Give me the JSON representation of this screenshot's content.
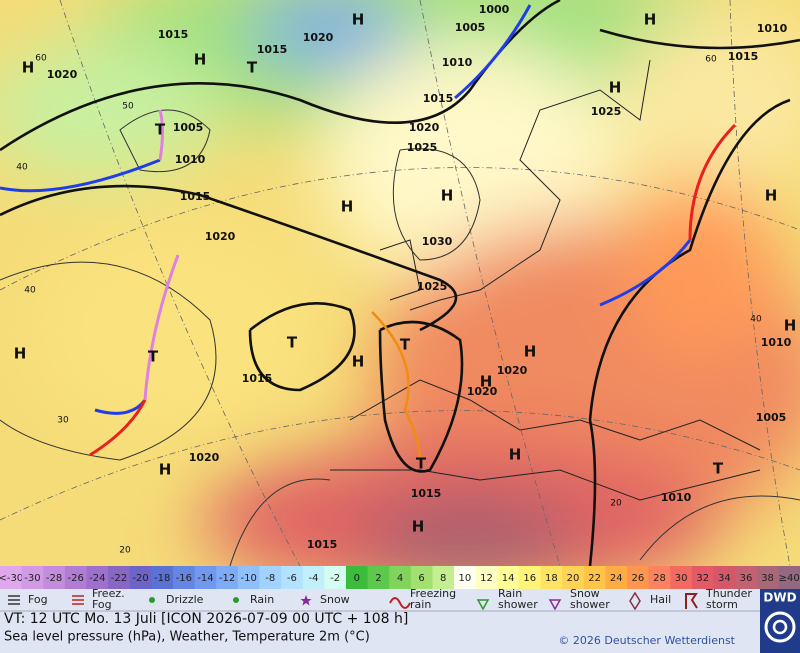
{
  "map": {
    "labels": [
      "H",
      "1020",
      "1015",
      "1015",
      "1020",
      "H",
      "H",
      "T",
      "1000",
      "1005",
      "H",
      "1010",
      "1015",
      "1010",
      "1015",
      "H",
      "1025",
      "T",
      "1005",
      "1010",
      "1020",
      "1025",
      "1015",
      "H",
      "H",
      "1020",
      "1030",
      "1025",
      "T",
      "1015",
      "H",
      "H",
      "T",
      "H",
      "1020",
      "H",
      "1020",
      "T",
      "T",
      "1015",
      "H",
      "1015",
      "H",
      "1020",
      "H",
      "T",
      "1010",
      "1005",
      "1010",
      "H",
      "H",
      "40",
      "40",
      "30",
      "20",
      "20",
      "60",
      "50",
      "60",
      "40"
    ]
  },
  "scale": {
    "labels": [
      "<-30",
      -30,
      -28,
      -26,
      -24,
      -22,
      -20,
      -18,
      -16,
      -14,
      -12,
      -10,
      -8,
      -6,
      -4,
      -2,
      0,
      2,
      4,
      6,
      8,
      10,
      12,
      14,
      16,
      18,
      20,
      22,
      24,
      26,
      28,
      30,
      32,
      34,
      36,
      38,
      "≥40"
    ],
    "colors": [
      "#e0a8ec",
      "#d29ae4",
      "#c48cdc",
      "#b07cd4",
      "#9c70cc",
      "#8866c4",
      "#6c64c8",
      "#5a72d4",
      "#6486e2",
      "#7098ee",
      "#7eaaf6",
      "#90c0fc",
      "#a2d2ff",
      "#b2e2ff",
      "#c2f0fa",
      "#d4fcf0",
      "#3cbc3c",
      "#5cc84c",
      "#80d45c",
      "#a2e070",
      "#c4ee90",
      "#fffff0",
      "#ffffc4",
      "#ffff96",
      "#fff478",
      "#ffe464",
      "#ffd456",
      "#ffc448",
      "#ffac44",
      "#ff964e",
      "#ff8260",
      "#f26a62",
      "#e45a66",
      "#d45868",
      "#c46272",
      "#a86878",
      "#946880"
    ]
  },
  "legend": {
    "items": [
      [
        "Fog"
      ],
      [
        "Freez.",
        "Fog"
      ],
      [
        "Drizzle"
      ],
      [
        "Rain"
      ],
      [
        "Snow"
      ],
      [
        "Freezing",
        "rain"
      ],
      [
        "Rain",
        "shower"
      ],
      [
        "Snow",
        "shower"
      ],
      [
        "Hail"
      ],
      [
        "Thunder",
        "storm"
      ]
    ]
  },
  "footer": {
    "valid_time": "VT: 12 UTC Mo.   13 Juli [ICON 2026-07-09   00 UTC + 108 h]",
    "description": "Sea level pressure (hPa), Weather, Temperature 2m (°C)",
    "copyright": "© 2026 Deutscher Wetterdienst",
    "logo": "DWD"
  }
}
